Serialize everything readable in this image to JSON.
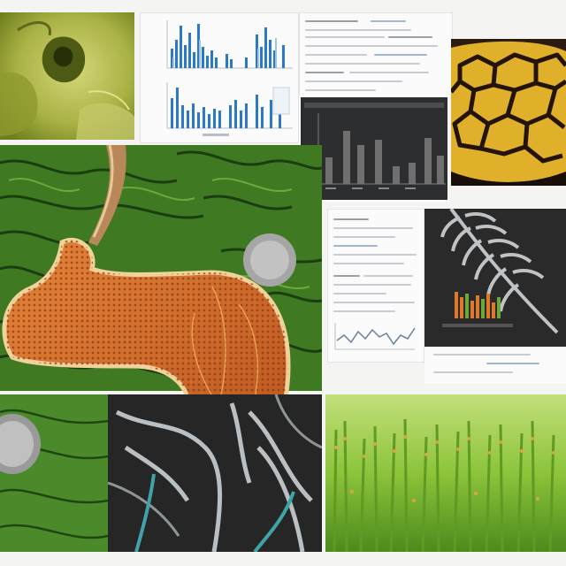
{
  "collage": {
    "panels": [
      {
        "id": "insect-closeup",
        "kind": "photo"
      },
      {
        "id": "bar-chart-document",
        "kind": "document"
      },
      {
        "id": "text-document-top",
        "kind": "document"
      },
      {
        "id": "dark-bar-chart",
        "kind": "screen"
      },
      {
        "id": "reptile-scale-pattern",
        "kind": "photo"
      },
      {
        "id": "green-leaf-texture",
        "kind": "photo"
      },
      {
        "id": "orange-organ-illustration",
        "kind": "illustration"
      },
      {
        "id": "text-document-middle",
        "kind": "document"
      },
      {
        "id": "dark-fern-screen",
        "kind": "screen"
      },
      {
        "id": "gray-skeleton-scan",
        "kind": "photo"
      },
      {
        "id": "green-grass-field",
        "kind": "photo"
      }
    ],
    "colors": {
      "leaf_green": "#3f7a22",
      "organ_orange": "#d3692c",
      "scale_yellow": "#e0b02a",
      "chart_blue": "#2a78c8",
      "grass_green": "#8cc43a"
    }
  }
}
